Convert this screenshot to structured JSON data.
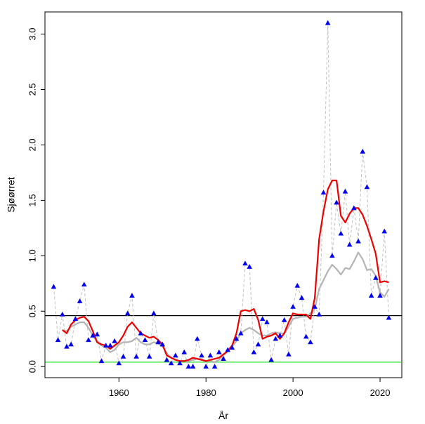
{
  "chart_data": {
    "type": "line",
    "title": "",
    "xlabel": "År",
    "ylabel": "Sjøørret",
    "xlim": [
      1943,
      2025
    ],
    "ylim": [
      -0.1,
      3.2
    ],
    "xticks": [
      1960,
      1980,
      2000,
      2020
    ],
    "yticks": [
      0.0,
      0.5,
      1.0,
      1.5,
      2.0,
      2.5,
      3.0
    ],
    "xtick_labels": [
      "1960",
      "1980",
      "2000",
      "2020"
    ],
    "ytick_labels": [
      "0.0",
      "0.5",
      "1.0",
      "1.5",
      "2.0",
      "2.5",
      "3.0"
    ],
    "grid": false,
    "reference_lines": [
      {
        "name": "black-reference-line",
        "y": 0.46,
        "color": "#000000"
      },
      {
        "name": "green-reference-line",
        "y": 0.04,
        "color": "#33dd33"
      }
    ],
    "series": [
      {
        "name": "observed",
        "style": "dashed-markers",
        "color": "#c0c0c0",
        "marker_color": "#0000ee",
        "x": [
          1945,
          1946,
          1947,
          1948,
          1949,
          1950,
          1951,
          1952,
          1953,
          1954,
          1955,
          1956,
          1957,
          1958,
          1959,
          1960,
          1961,
          1962,
          1963,
          1964,
          1965,
          1966,
          1967,
          1968,
          1969,
          1970,
          1971,
          1972,
          1973,
          1974,
          1975,
          1976,
          1977,
          1978,
          1979,
          1980,
          1981,
          1982,
          1983,
          1984,
          1985,
          1986,
          1987,
          1988,
          1989,
          1990,
          1991,
          1992,
          1993,
          1994,
          1995,
          1996,
          1997,
          1998,
          1999,
          2000,
          2001,
          2002,
          2003,
          2004,
          2005,
          2006,
          2007,
          2008,
          2009,
          2010,
          2011,
          2012,
          2013,
          2014,
          2015,
          2016,
          2017,
          2018,
          2019,
          2020,
          2021,
          2022
        ],
        "y": [
          0.72,
          0.24,
          0.47,
          0.18,
          0.2,
          0.43,
          0.59,
          0.74,
          0.24,
          0.28,
          0.29,
          0.05,
          0.19,
          0.19,
          0.23,
          0.03,
          0.09,
          0.48,
          0.64,
          0.09,
          0.3,
          0.24,
          0.09,
          0.48,
          0.22,
          0.2,
          0.06,
          0.03,
          0.1,
          0.03,
          0.13,
          0.0,
          0.0,
          0.25,
          0.1,
          0.0,
          0.1,
          0.0,
          0.13,
          0.07,
          0.15,
          0.17,
          0.25,
          0.3,
          0.93,
          0.9,
          0.13,
          0.2,
          0.43,
          0.4,
          0.06,
          0.25,
          0.28,
          0.42,
          0.11,
          0.54,
          0.73,
          0.62,
          0.27,
          0.22,
          0.54,
          0.47,
          1.57,
          3.1,
          1.0,
          1.48,
          1.2,
          1.58,
          1.1,
          1.43,
          1.13,
          1.94,
          1.62,
          0.64,
          0.8,
          0.64,
          1.22,
          0.44
        ]
      },
      {
        "name": "smoothed-grey",
        "style": "solid",
        "color": "#b4b4b4",
        "x": [
          1947,
          1948,
          1949,
          1950,
          1951,
          1952,
          1953,
          1954,
          1955,
          1956,
          1957,
          1958,
          1959,
          1960,
          1961,
          1962,
          1963,
          1964,
          1965,
          1966,
          1967,
          1968,
          1969,
          1970,
          1971,
          1972,
          1973,
          1974,
          1975,
          1976,
          1977,
          1978,
          1979,
          1980,
          1981,
          1982,
          1983,
          1984,
          1985,
          1986,
          1987,
          1988,
          1989,
          1990,
          1991,
          1992,
          1993,
          1994,
          1995,
          1996,
          1997,
          1998,
          1999,
          2000,
          2001,
          2002,
          2003,
          2004,
          2005,
          2006,
          2007,
          2008,
          2009,
          2010,
          2011,
          2012,
          2013,
          2014,
          2015,
          2016,
          2017,
          2018,
          2019,
          2020,
          2021,
          2022
        ],
        "y": [
          0.33,
          0.32,
          0.36,
          0.38,
          0.4,
          0.4,
          0.35,
          0.28,
          0.22,
          0.19,
          0.17,
          0.13,
          0.15,
          0.2,
          0.22,
          0.22,
          0.23,
          0.26,
          0.22,
          0.2,
          0.2,
          0.22,
          0.21,
          0.18,
          0.12,
          0.08,
          0.06,
          0.05,
          0.05,
          0.05,
          0.06,
          0.07,
          0.07,
          0.05,
          0.05,
          0.04,
          0.06,
          0.1,
          0.14,
          0.18,
          0.23,
          0.3,
          0.33,
          0.35,
          0.33,
          0.3,
          0.28,
          0.28,
          0.3,
          0.31,
          0.3,
          0.3,
          0.36,
          0.43,
          0.44,
          0.45,
          0.45,
          0.48,
          0.52,
          0.7,
          0.78,
          0.86,
          0.92,
          0.88,
          0.83,
          0.89,
          0.88,
          0.95,
          1.03,
          0.97,
          0.87,
          0.88,
          0.82,
          0.67,
          0.63,
          0.7
        ]
      },
      {
        "name": "smoothed-red",
        "style": "solid",
        "color": "#ee0000",
        "x": [
          1947,
          1948,
          1949,
          1950,
          1951,
          1952,
          1953,
          1954,
          1955,
          1956,
          1957,
          1958,
          1959,
          1960,
          1961,
          1962,
          1963,
          1964,
          1965,
          1966,
          1967,
          1968,
          1969,
          1970,
          1971,
          1972,
          1973,
          1974,
          1975,
          1976,
          1977,
          1978,
          1979,
          1980,
          1981,
          1982,
          1983,
          1984,
          1985,
          1986,
          1987,
          1988,
          1989,
          1990,
          1991,
          1992,
          1993,
          1994,
          1995,
          1996,
          1997,
          1998,
          1999,
          2000,
          2001,
          2002,
          2003,
          2004,
          2005,
          2006,
          2007,
          2008,
          2009,
          2010,
          2011,
          2012,
          2013,
          2014,
          2015,
          2016,
          2017,
          2018,
          2019,
          2020,
          2021,
          2022
        ],
        "y": [
          0.33,
          0.3,
          0.38,
          0.42,
          0.44,
          0.45,
          0.41,
          0.32,
          0.22,
          0.2,
          0.19,
          0.16,
          0.19,
          0.22,
          0.28,
          0.36,
          0.4,
          0.35,
          0.3,
          0.28,
          0.26,
          0.27,
          0.24,
          0.2,
          0.1,
          0.08,
          0.06,
          0.05,
          0.05,
          0.06,
          0.08,
          0.07,
          0.06,
          0.05,
          0.06,
          0.07,
          0.08,
          0.11,
          0.14,
          0.19,
          0.3,
          0.5,
          0.51,
          0.5,
          0.52,
          0.42,
          0.25,
          0.27,
          0.28,
          0.3,
          0.25,
          0.3,
          0.4,
          0.48,
          0.47,
          0.47,
          0.47,
          0.43,
          0.62,
          1.15,
          1.4,
          1.6,
          1.68,
          1.68,
          1.36,
          1.3,
          1.38,
          1.43,
          1.43,
          1.37,
          1.27,
          1.15,
          1.02,
          0.76,
          0.77,
          0.76
        ]
      }
    ]
  }
}
